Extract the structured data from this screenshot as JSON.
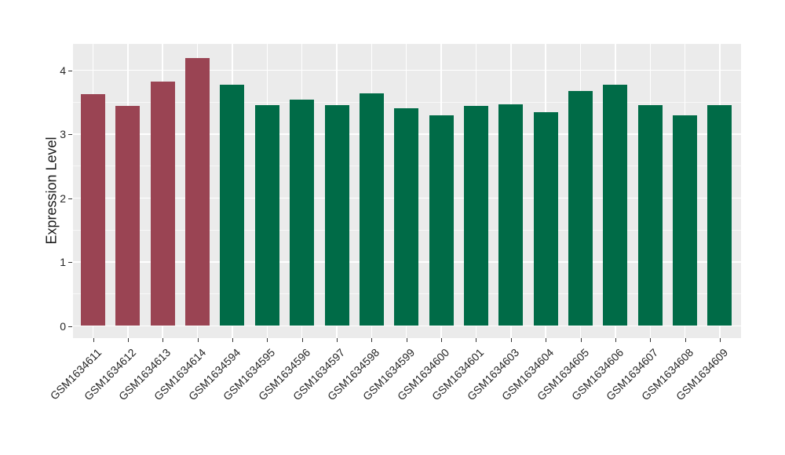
{
  "figure": {
    "background": "#FFFFFF",
    "panel_background": "#EBEBEB",
    "gridline_color": "#FFFFFF",
    "tick_mark_color": "#333333",
    "axis_text_color": "#262626"
  },
  "chart_data": {
    "type": "bar",
    "title": "",
    "xlabel": "",
    "ylabel": "Expression Level",
    "ylim": [
      0,
      4.41
    ],
    "yticks": [
      0,
      1,
      2,
      3,
      4
    ],
    "ytick_labels": [
      "0",
      "1",
      "2",
      "3",
      "4"
    ],
    "minor_yticks": [
      0.5,
      1.5,
      2.5,
      3.5
    ],
    "grid": true,
    "legend": false,
    "x_label_rotation_deg": 45,
    "categories": [
      "GSM1634611",
      "GSM1634612",
      "GSM1634613",
      "GSM1634614",
      "GSM1634594",
      "GSM1634595",
      "GSM1634596",
      "GSM1634597",
      "GSM1634598",
      "GSM1634599",
      "GSM1634600",
      "GSM1634601",
      "GSM1634603",
      "GSM1634604",
      "GSM1634605",
      "GSM1634606",
      "GSM1634607",
      "GSM1634608",
      "GSM1634609"
    ],
    "values": [
      3.63,
      3.44,
      3.82,
      4.19,
      3.77,
      3.45,
      3.54,
      3.45,
      3.64,
      3.4,
      3.29,
      3.44,
      3.47,
      3.34,
      3.67,
      3.77,
      3.45,
      3.29,
      3.46
    ],
    "bar_color_groups": [
      "maroon",
      "maroon",
      "maroon",
      "maroon",
      "green",
      "green",
      "green",
      "green",
      "green",
      "green",
      "green",
      "green",
      "green",
      "green",
      "green",
      "green",
      "green",
      "green",
      "green"
    ],
    "palette": {
      "maroon": "#9A4453",
      "green": "#006B47"
    }
  }
}
